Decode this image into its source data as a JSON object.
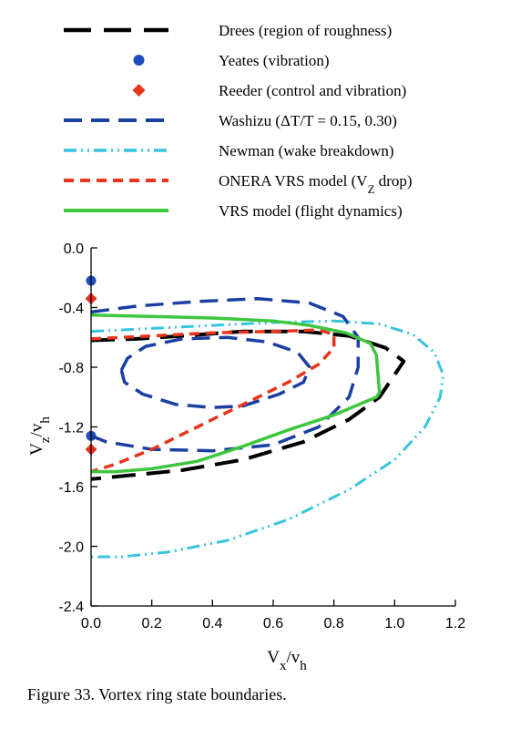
{
  "caption": "Figure 33. Vortex ring state boundaries.",
  "chart_data": {
    "type": "line",
    "xlabel": {
      "main": "V",
      "sub": "x",
      "rest": "/v",
      "sub2": "h"
    },
    "ylabel": {
      "main": "V",
      "sub": "z",
      "rest": "/v",
      "sub2": "h"
    },
    "xlim": [
      0,
      1.2
    ],
    "ylim": [
      -2.4,
      0
    ],
    "x_ticks": [
      "0.0",
      "0.2",
      "0.4",
      "0.6",
      "0.8",
      "1.0",
      "1.2"
    ],
    "y_ticks": [
      "0.0",
      "-0.4",
      "-0.8",
      "-1.2",
      "-1.6",
      "-2.0",
      "-2.4"
    ],
    "grid": false,
    "legend_position": "top",
    "series": [
      {
        "name": "Drees (region of roughness)",
        "color": "#000000",
        "style": "long-dash",
        "kind": "line",
        "x": [
          0.0,
          0.15,
          0.3,
          0.5,
          0.7,
          0.85,
          0.97,
          1.03,
          1.0,
          0.95,
          0.85,
          0.7,
          0.5,
          0.3,
          0.15,
          0.0
        ],
        "y": [
          -0.62,
          -0.61,
          -0.59,
          -0.56,
          -0.56,
          -0.59,
          -0.67,
          -0.76,
          -0.85,
          -1.0,
          -1.15,
          -1.3,
          -1.42,
          -1.49,
          -1.52,
          -1.55
        ]
      },
      {
        "name": "Yeates (vibration)",
        "color": "#1f4fbf",
        "style": "marker-circle",
        "kind": "points",
        "x": [
          0.0,
          0.0
        ],
        "y": [
          -0.22,
          -1.26
        ]
      },
      {
        "name": "Reeder (control and vibration)",
        "color": "#e8341c",
        "style": "marker-diamond",
        "kind": "points",
        "x": [
          0.0,
          0.0
        ],
        "y": [
          -0.34,
          -1.35
        ]
      },
      {
        "name": "Washizu (ΔT/T = 0.15, 0.30)",
        "color": "#1a3fa0",
        "style": "dash",
        "kind": "multi",
        "parts": [
          {
            "x": [
              0.0,
              0.15,
              0.35,
              0.55,
              0.72,
              0.83,
              0.88,
              0.88,
              0.85,
              0.75,
              0.6,
              0.4,
              0.2,
              0.05,
              0.0
            ],
            "y": [
              -0.43,
              -0.39,
              -0.36,
              -0.34,
              -0.37,
              -0.46,
              -0.6,
              -0.8,
              -1.0,
              -1.2,
              -1.32,
              -1.36,
              -1.35,
              -1.3,
              -1.26
            ]
          },
          {
            "x": [
              0.1,
              0.12,
              0.18,
              0.3,
              0.45,
              0.58,
              0.68,
              0.72,
              0.7,
              0.62,
              0.5,
              0.4,
              0.28,
              0.17,
              0.11,
              0.1
            ],
            "y": [
              -0.82,
              -0.74,
              -0.66,
              -0.61,
              -0.6,
              -0.63,
              -0.7,
              -0.8,
              -0.9,
              -0.98,
              -1.06,
              -1.07,
              -1.05,
              -0.98,
              -0.9,
              -0.82
            ]
          }
        ]
      },
      {
        "name": "Newman (wake breakdown)",
        "color": "#38c4de",
        "style": "dash-dot-dot",
        "kind": "line",
        "x": [
          0.0,
          0.2,
          0.4,
          0.6,
          0.8,
          0.95,
          1.06,
          1.13,
          1.16,
          1.15,
          1.1,
          1.0,
          0.85,
          0.65,
          0.45,
          0.25,
          0.1,
          0.0
        ],
        "y": [
          -0.56,
          -0.54,
          -0.52,
          -0.5,
          -0.49,
          -0.51,
          -0.58,
          -0.7,
          -0.85,
          -1.0,
          -1.2,
          -1.42,
          -1.62,
          -1.82,
          -1.96,
          -2.04,
          -2.07,
          -2.07
        ]
      },
      {
        "name": "ONERA VRS model (V",
        "name_sub": "Z",
        "name_tail": " drop)",
        "color": "#e8341c",
        "style": "short-dash",
        "kind": "line",
        "x": [
          0.0,
          0.2,
          0.4,
          0.6,
          0.75,
          0.8,
          0.8,
          0.75,
          0.65,
          0.5,
          0.35,
          0.2,
          0.08,
          0.0
        ],
        "y": [
          -0.61,
          -0.59,
          -0.57,
          -0.56,
          -0.55,
          -0.58,
          -0.67,
          -0.78,
          -0.9,
          -1.05,
          -1.2,
          -1.35,
          -1.45,
          -1.5
        ]
      },
      {
        "name": "VRS model (flight dynamics)",
        "color": "#3ec63e",
        "style": "solid",
        "kind": "line",
        "x": [
          0.0,
          0.2,
          0.4,
          0.6,
          0.72,
          0.84,
          0.92,
          0.94,
          0.95,
          0.94,
          0.8,
          0.65,
          0.5,
          0.35,
          0.2,
          0.08,
          0.0
        ],
        "y": [
          -0.45,
          -0.46,
          -0.47,
          -0.49,
          -0.52,
          -0.57,
          -0.64,
          -0.72,
          -0.97,
          -1.0,
          -1.12,
          -1.22,
          -1.33,
          -1.43,
          -1.48,
          -1.5,
          -1.5
        ]
      }
    ]
  }
}
